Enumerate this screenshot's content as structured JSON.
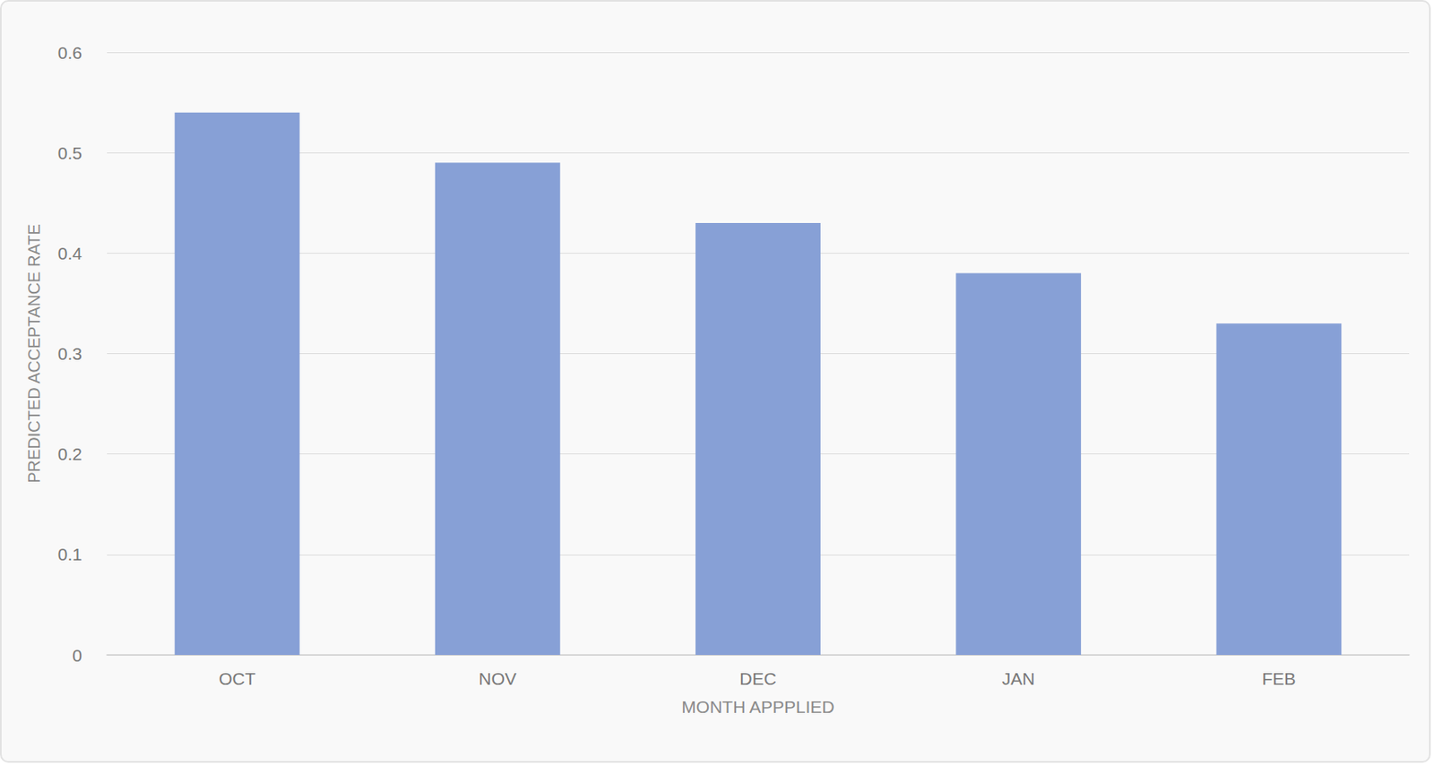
{
  "chart_data": {
    "type": "bar",
    "x_label": "MONTH APPPLIED",
    "y_label": "PREDICTED ACCEPTANCE RATE",
    "categories": [
      "OCT",
      "NOV",
      "DEC",
      "JAN",
      "FEB"
    ],
    "values": [
      0.54,
      0.49,
      0.43,
      0.38,
      0.33
    ],
    "color": "#87a0d6",
    "ylim": [
      0,
      0.6
    ],
    "yticks": [
      0,
      0.1,
      0.2,
      0.3,
      0.4,
      0.5,
      0.6
    ],
    "grid": true
  }
}
